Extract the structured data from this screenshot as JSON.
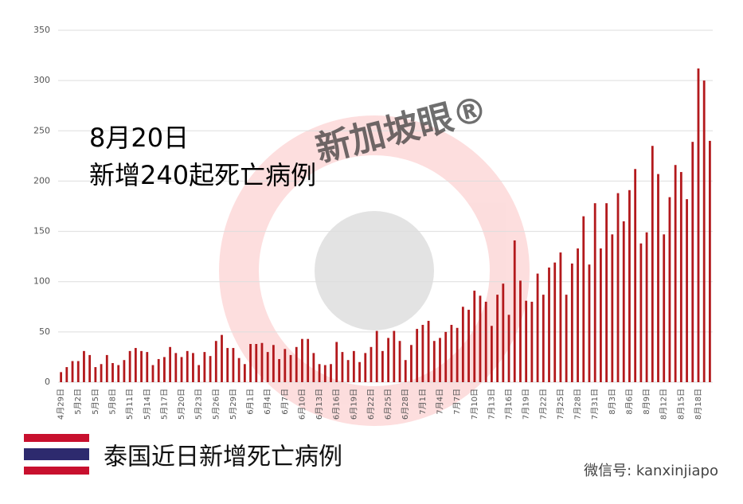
{
  "chart_data": {
    "type": "bar",
    "title": "8月20日",
    "subtitle": "新增240起死亡病例",
    "caption": "泰国近日新增死亡病例",
    "source": "微信号: kanxinjiapo",
    "watermark": "新加坡眼®",
    "color": "#b3191c",
    "grid": true,
    "ylim": [
      0,
      350
    ],
    "yticks": [
      0,
      50,
      100,
      150,
      200,
      250,
      300,
      350
    ],
    "categories": [
      "4月29日",
      null,
      null,
      "5月2日",
      null,
      null,
      "5月5日",
      null,
      null,
      "5月8日",
      null,
      null,
      "5月11日",
      null,
      null,
      "5月14日",
      null,
      null,
      "5月17日",
      null,
      null,
      "5月20日",
      null,
      null,
      "5月23日",
      null,
      null,
      "5月26日",
      null,
      null,
      "5月29日",
      null,
      null,
      "6月1日",
      null,
      null,
      "6月4日",
      null,
      null,
      "6月7日",
      null,
      null,
      "6月10日",
      null,
      null,
      "6月13日",
      null,
      null,
      "6月16日",
      null,
      null,
      "6月19日",
      null,
      null,
      "6月22日",
      null,
      null,
      "6月25日",
      null,
      null,
      "6月28日",
      null,
      null,
      "7月1日",
      null,
      null,
      "7月4日",
      null,
      null,
      "7月7日",
      null,
      null,
      "7月10日",
      null,
      null,
      "7月13日",
      null,
      null,
      "7月16日",
      null,
      null,
      "7月19日",
      null,
      null,
      "7月22日",
      null,
      null,
      "7月25日",
      null,
      null,
      "7月28日",
      null,
      null,
      "7月31日",
      null,
      null,
      "8月3日",
      null,
      null,
      "8月6日",
      null,
      null,
      "8月9日",
      null,
      null,
      "8月12日",
      null,
      null,
      "8月15日",
      null,
      null,
      "8月18日",
      null,
      null
    ],
    "values": [
      10,
      15,
      21,
      21,
      31,
      27,
      15,
      18,
      27,
      19,
      17,
      22,
      31,
      34,
      31,
      30,
      17,
      23,
      25,
      35,
      29,
      25,
      31,
      29,
      17,
      30,
      26,
      41,
      47,
      34,
      34,
      24,
      18,
      38,
      38,
      39,
      30,
      37,
      23,
      33,
      27,
      35,
      43,
      43,
      29,
      18,
      17,
      18,
      40,
      30,
      22,
      31,
      20,
      29,
      35,
      51,
      31,
      44,
      51,
      41,
      22,
      37,
      53,
      57,
      61,
      41,
      44,
      50,
      57,
      54,
      75,
      72,
      91,
      86,
      80,
      56,
      87,
      98,
      67,
      141,
      101,
      81,
      80,
      108,
      87,
      114,
      119,
      129,
      87,
      118,
      133,
      165,
      117,
      178,
      133,
      178,
      147,
      188,
      160,
      191,
      212,
      138,
      149,
      235,
      207,
      147,
      184,
      216,
      209,
      182,
      239,
      312,
      300,
      240
    ]
  }
}
